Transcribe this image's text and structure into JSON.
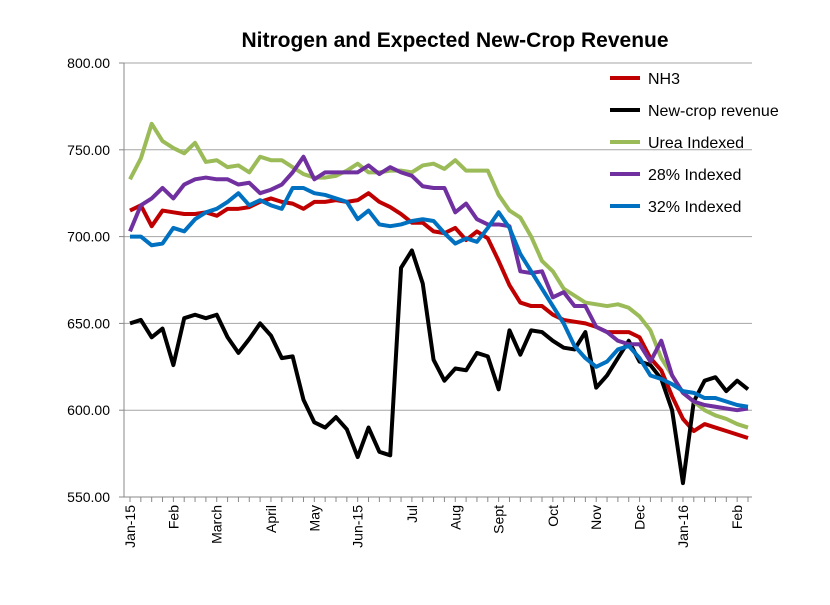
{
  "chart_data": {
    "type": "line",
    "title": "Nitrogen and Expected New-Crop Revenue",
    "categories": [
      "Jan-15",
      null,
      null,
      null,
      "Feb",
      null,
      null,
      null,
      "March",
      null,
      null,
      null,
      null,
      "April",
      null,
      null,
      null,
      "May",
      null,
      null,
      null,
      "Jun-15",
      null,
      null,
      null,
      null,
      "Jul",
      null,
      null,
      null,
      "Aug",
      null,
      null,
      null,
      "Sept",
      null,
      null,
      null,
      null,
      "Oct",
      null,
      null,
      null,
      "Nov",
      null,
      null,
      null,
      "Dec",
      null,
      null,
      null,
      "Jan-16",
      null,
      null,
      null,
      null,
      "Feb",
      null
    ],
    "ylim": [
      550,
      800
    ],
    "yticks": [
      {
        "value": 550,
        "label": "550.00"
      },
      {
        "value": 600,
        "label": "600.00"
      },
      {
        "value": 650,
        "label": "650.00"
      },
      {
        "value": 700,
        "label": "700.00"
      },
      {
        "value": 750,
        "label": "750.00"
      },
      {
        "value": 800,
        "label": "800.00"
      }
    ],
    "grid": true,
    "legend": "top-right",
    "series": [
      {
        "name": "NH3",
        "color": "#c00000",
        "values": [
          715,
          718,
          706,
          715,
          714,
          713,
          713,
          714,
          712,
          716,
          716,
          717,
          720,
          722,
          720,
          719,
          716,
          720,
          720,
          721,
          720,
          721,
          725,
          720,
          717,
          713,
          708,
          708,
          703,
          702,
          705,
          698,
          703,
          699,
          686,
          672,
          662,
          660,
          660,
          655,
          652,
          651,
          650,
          648,
          645,
          645,
          645,
          642,
          630,
          623,
          608,
          595,
          588,
          592,
          590,
          588,
          586,
          584
        ]
      },
      {
        "name": "New-crop revenue",
        "color": "#000000",
        "values": [
          650,
          652,
          642,
          647,
          626,
          653,
          655,
          653,
          655,
          642,
          633,
          641,
          650,
          643,
          630,
          631,
          606,
          593,
          590,
          596,
          589,
          573,
          590,
          576,
          574,
          682,
          692,
          673,
          629,
          617,
          624,
          623,
          633,
          631,
          612,
          646,
          632,
          646,
          645,
          640,
          636,
          635,
          645,
          613,
          620,
          630,
          640,
          628,
          626,
          618,
          600,
          558,
          605,
          617,
          619,
          611,
          617,
          612
        ]
      },
      {
        "name": "Urea Indexed",
        "color": "#9bbb59",
        "values": [
          733,
          745,
          765,
          755,
          751,
          748,
          754,
          743,
          744,
          740,
          741,
          737,
          746,
          744,
          744,
          740,
          736,
          734,
          734,
          735,
          738,
          742,
          737,
          737,
          738,
          738,
          737,
          741,
          742,
          739,
          744,
          738,
          738,
          738,
          724,
          715,
          711,
          700,
          686,
          680,
          670,
          666,
          662,
          661,
          660,
          661,
          659,
          654,
          646,
          630,
          620,
          610,
          605,
          600,
          597,
          595,
          592,
          590
        ]
      },
      {
        "name": "28% Indexed",
        "color": "#7030a0",
        "values": [
          703,
          718,
          722,
          728,
          722,
          730,
          733,
          734,
          733,
          733,
          730,
          731,
          725,
          727,
          730,
          737,
          746,
          733,
          737,
          737,
          737,
          737,
          741,
          736,
          740,
          737,
          735,
          729,
          728,
          728,
          714,
          719,
          710,
          707,
          707,
          706,
          680,
          679,
          680,
          665,
          668,
          660,
          660,
          648,
          645,
          640,
          638,
          638,
          628,
          640,
          620,
          610,
          605,
          603,
          602,
          601,
          600,
          601
        ]
      },
      {
        "name": "32% Indexed",
        "color": "#0070c0",
        "values": [
          700,
          700,
          695,
          696,
          705,
          703,
          710,
          714,
          716,
          720,
          725,
          718,
          721,
          718,
          716,
          728,
          728,
          725,
          724,
          722,
          720,
          710,
          715,
          707,
          706,
          707,
          709,
          710,
          709,
          702,
          696,
          699,
          697,
          705,
          714,
          705,
          690,
          680,
          670,
          660,
          650,
          637,
          630,
          625,
          628,
          635,
          637,
          630,
          620,
          618,
          615,
          611,
          610,
          607,
          607,
          605,
          603,
          602
        ]
      }
    ]
  }
}
